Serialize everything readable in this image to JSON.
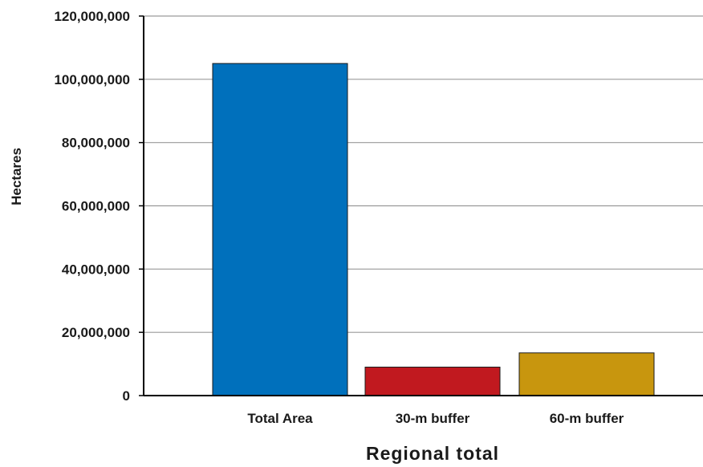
{
  "chart_data": {
    "type": "bar",
    "categories": [
      "Total Area",
      "30-m buffer",
      "60-m buffer"
    ],
    "values": [
      105000000,
      9000000,
      13500000
    ],
    "colors": [
      "#0070bc",
      "#c1191f",
      "#c8960e"
    ],
    "xlabel": "Regional total",
    "ylabel": "Hectares",
    "ylim": [
      0,
      120000000
    ],
    "yticks": [
      0,
      20000000,
      40000000,
      60000000,
      80000000,
      100000000,
      120000000
    ],
    "ytick_labels": [
      "0",
      "20,000,000",
      "40,000,000",
      "60,000,000",
      "80,000,000",
      "100,000,000",
      "120,000,000"
    ],
    "grid": true
  }
}
